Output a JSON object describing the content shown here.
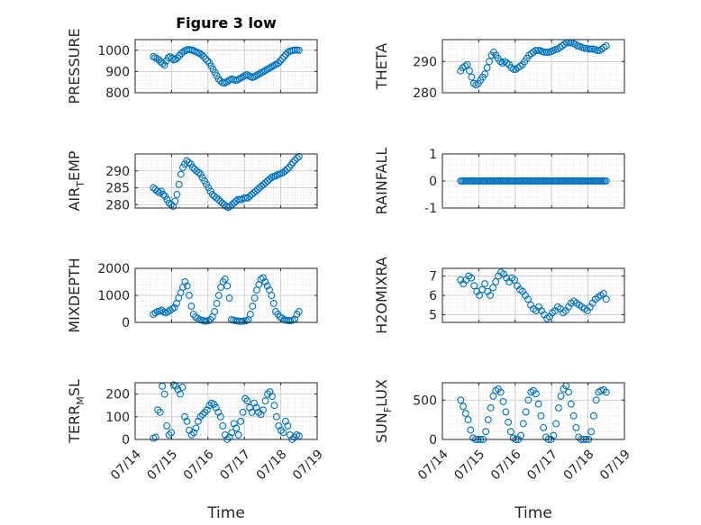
{
  "figure": {
    "title": "Figure 3 low",
    "marker_color": "#0072bd"
  },
  "chart_data": [
    {
      "type": "scatter",
      "ylabel": "PRESSURE",
      "ylabel_sub": "",
      "ylim": [
        800,
        1050
      ],
      "yticks": [
        800,
        900,
        1000
      ],
      "xlim": [
        "07/14",
        "07/19"
      ],
      "x_start": "07/14 12:00",
      "x_step_hours": 1.5,
      "xticks": [],
      "xlabel": "",
      "y": [
        970,
        965,
        960,
        955,
        945,
        938,
        930,
        950,
        965,
        970,
        962,
        955,
        958,
        965,
        975,
        985,
        992,
        998,
        1002,
        1003,
        1002,
        1000,
        996,
        992,
        988,
        984,
        978,
        970,
        960,
        950,
        940,
        925,
        910,
        895,
        880,
        865,
        855,
        848,
        845,
        850,
        855,
        860,
        865,
        862,
        858,
        860,
        865,
        870,
        875,
        880,
        885,
        880,
        876,
        872,
        875,
        880,
        885,
        890,
        895,
        900,
        905,
        910,
        915,
        920,
        925,
        930,
        935,
        940,
        950,
        960,
        970,
        980,
        990,
        995,
        998,
        1000,
        1001,
        1001,
        1000
      ]
    },
    {
      "type": "scatter",
      "ylabel": "THETA",
      "ylabel_sub": "",
      "ylim": [
        280,
        297
      ],
      "yticks": [
        280,
        290
      ],
      "xlim": [
        "07/14",
        "07/19"
      ],
      "x_start": "07/14 12:00",
      "x_step_hours": 1.5,
      "xticks": [],
      "xlabel": "",
      "y": [
        287,
        288,
        288.5,
        289,
        287,
        285,
        283,
        282.5,
        283,
        284,
        285,
        286,
        288,
        290,
        292,
        293,
        292,
        291,
        290,
        289.5,
        290,
        289.5,
        289,
        288,
        287.5,
        287.5,
        288,
        288.5,
        289,
        290,
        291,
        292,
        292.5,
        293,
        293.5,
        293.5,
        293.5,
        293.2,
        293,
        293,
        293,
        293.2,
        293.5,
        293.8,
        294,
        294.5,
        295,
        295.5,
        296,
        296,
        296,
        295.8,
        295.5,
        295,
        294.8,
        294.5,
        294.3,
        294.2,
        294,
        294,
        294,
        293.8,
        293.5,
        293.5,
        294,
        294.5,
        295
      ]
    },
    {
      "type": "scatter",
      "ylabel": "AIR",
      "ylabel_sub": "T",
      "ylabel_rest": "EMP",
      "ylim": [
        279,
        295
      ],
      "yticks": [
        280,
        285,
        290
      ],
      "xlim": [
        "07/14",
        "07/19"
      ],
      "x_start": "07/14 12:00",
      "x_step_hours": 1.5,
      "xticks": [],
      "xlabel": "",
      "y": [
        285,
        284.5,
        284,
        283.5,
        284,
        283,
        282.5,
        281.5,
        280.5,
        280,
        279.5,
        281,
        283,
        286,
        289,
        291,
        292,
        293,
        292.5,
        292,
        291,
        290.5,
        290,
        289.5,
        289,
        288,
        287,
        286,
        285,
        284,
        283,
        282.5,
        282,
        281.5,
        281,
        280.5,
        280,
        279.5,
        279.2,
        279.5,
        280,
        280.5,
        281,
        281.5,
        281.5,
        281.5,
        282,
        282,
        282,
        282.5,
        283,
        283.5,
        284,
        284.5,
        285,
        285.5,
        286,
        286.5,
        287,
        287.5,
        288,
        288.3,
        288.5,
        288.8,
        289,
        289.3,
        289.5,
        290,
        290.5,
        291,
        291.8,
        292.5,
        293.2,
        293.8,
        294.2
      ]
    },
    {
      "type": "scatter",
      "ylabel": "RAINFALL",
      "ylabel_sub": "",
      "ylim": [
        -1,
        1
      ],
      "yticks": [
        -1,
        0,
        1
      ],
      "xlim": [
        "07/14",
        "07/19"
      ],
      "x_start": "07/14 12:00",
      "x_step_hours": 1.5,
      "xticks": [],
      "xlabel": "",
      "y": [
        0,
        0,
        0,
        0,
        0,
        0,
        0,
        0,
        0,
        0,
        0,
        0,
        0,
        0,
        0,
        0,
        0,
        0,
        0,
        0,
        0,
        0,
        0,
        0,
        0,
        0,
        0,
        0,
        0,
        0,
        0,
        0,
        0,
        0,
        0,
        0,
        0,
        0,
        0,
        0,
        0,
        0,
        0,
        0,
        0,
        0,
        0,
        0,
        0,
        0,
        0,
        0,
        0,
        0,
        0,
        0,
        0,
        0,
        0,
        0,
        0,
        0,
        0,
        0,
        0,
        0,
        0,
        0,
        0,
        0,
        0,
        0,
        0,
        0,
        0,
        0,
        0,
        0,
        0,
        0,
        0,
        0,
        0,
        0,
        0,
        0,
        0,
        0,
        0,
        0,
        0,
        0
      ]
    },
    {
      "type": "scatter",
      "ylabel": "MIXDEPTH",
      "ylabel_sub": "",
      "ylim": [
        0,
        2000
      ],
      "yticks": [
        0,
        1000,
        2000
      ],
      "xlim": [
        "07/14",
        "07/19"
      ],
      "x_start": "07/14 12:00",
      "x_step_hours": 1.5,
      "xticks": [],
      "xlabel": "",
      "y": [
        300,
        350,
        400,
        420,
        450,
        380,
        350,
        400,
        450,
        500,
        550,
        700,
        900,
        1100,
        1300,
        1500,
        1350,
        1000,
        600,
        300,
        200,
        150,
        100,
        80,
        50,
        50,
        60,
        100,
        200,
        400,
        700,
        1000,
        1300,
        1500,
        1600,
        1350,
        900,
        100,
        80,
        60,
        50,
        40,
        40,
        50,
        60,
        100,
        300,
        600,
        900,
        1200,
        1400,
        1600,
        1650,
        1500,
        1350,
        1200,
        1000,
        700,
        400,
        300,
        200,
        150,
        100,
        80,
        70,
        60,
        80,
        120,
        300,
        400
      ]
    },
    {
      "type": "scatter",
      "ylabel": "H2OMIXRA",
      "ylabel_sub": "",
      "ylim": [
        4.6,
        7.4
      ],
      "yticks": [
        5,
        6,
        7
      ],
      "xlim": [
        "07/14",
        "07/19"
      ],
      "x_start": "07/14 12:00",
      "x_step_hours": 1.5,
      "xticks": [],
      "xlabel": "",
      "y": [
        6.8,
        6.6,
        6.8,
        7,
        6.9,
        6.5,
        6.2,
        6,
        6.3,
        6.6,
        6.2,
        6,
        6.4,
        6.7,
        7,
        7.2,
        7.1,
        6.9,
        6.7,
        6.9,
        6.8,
        6.5,
        6.3,
        6.2,
        6,
        5.8,
        5.5,
        5.3,
        5.2,
        5.4,
        5.2,
        5,
        4.8,
        4.9,
        5.1,
        5.2,
        5.4,
        5.3,
        5.1,
        5.2,
        5.4,
        5.6,
        5.7,
        5.6,
        5.5,
        5.4,
        5.3,
        5.2,
        5.4,
        5.6,
        5.8,
        5.9,
        6,
        6.1,
        5.8
      ]
    },
    {
      "type": "scatter",
      "ylabel": "TERR",
      "ylabel_sub": "M",
      "ylabel_rest": "SL",
      "ylim": [
        0,
        250
      ],
      "yticks": [
        0,
        100,
        200
      ],
      "xlim": [
        "07/14",
        "07/19"
      ],
      "x_start": "07/14 12:00",
      "x_step_hours": 1.5,
      "xticks": [
        "07/14",
        "07/15",
        "07/16",
        "07/17",
        "07/18",
        "07/19"
      ],
      "xlabel": "Time",
      "y": [
        5,
        10,
        130,
        120,
        235,
        200,
        60,
        20,
        30,
        240,
        235,
        220,
        200,
        230,
        100,
        80,
        40,
        20,
        30,
        50,
        80,
        100,
        110,
        120,
        130,
        150,
        160,
        155,
        140,
        120,
        100,
        60,
        20,
        0,
        10,
        30,
        70,
        50,
        20,
        80,
        120,
        180,
        170,
        140,
        120,
        160,
        140,
        120,
        110,
        130,
        170,
        200,
        210,
        190,
        150,
        100,
        60,
        40,
        30,
        80,
        60,
        20,
        0,
        10,
        20,
        15
      ]
    },
    {
      "type": "scatter",
      "ylabel": "SUN",
      "ylabel_sub": "F",
      "ylabel_rest": "LUX",
      "ylim": [
        0,
        720
      ],
      "yticks": [
        0,
        500
      ],
      "xlim": [
        "07/14",
        "07/19"
      ],
      "x_start": "07/14 12:00",
      "x_step_hours": 1.5,
      "xticks": [
        "07/14",
        "07/15",
        "07/16",
        "07/17",
        "07/18",
        "07/19"
      ],
      "xlabel": "Time",
      "y": [
        500,
        420,
        330,
        250,
        120,
        20,
        0,
        0,
        0,
        0,
        100,
        250,
        400,
        550,
        620,
        640,
        600,
        480,
        350,
        220,
        100,
        20,
        0,
        0,
        50,
        200,
        350,
        500,
        600,
        620,
        580,
        450,
        300,
        150,
        30,
        0,
        0,
        50,
        200,
        400,
        550,
        640,
        680,
        600,
        450,
        300,
        150,
        30,
        0,
        0,
        0,
        0,
        100,
        300,
        500,
        600,
        620,
        630,
        600
      ]
    }
  ]
}
